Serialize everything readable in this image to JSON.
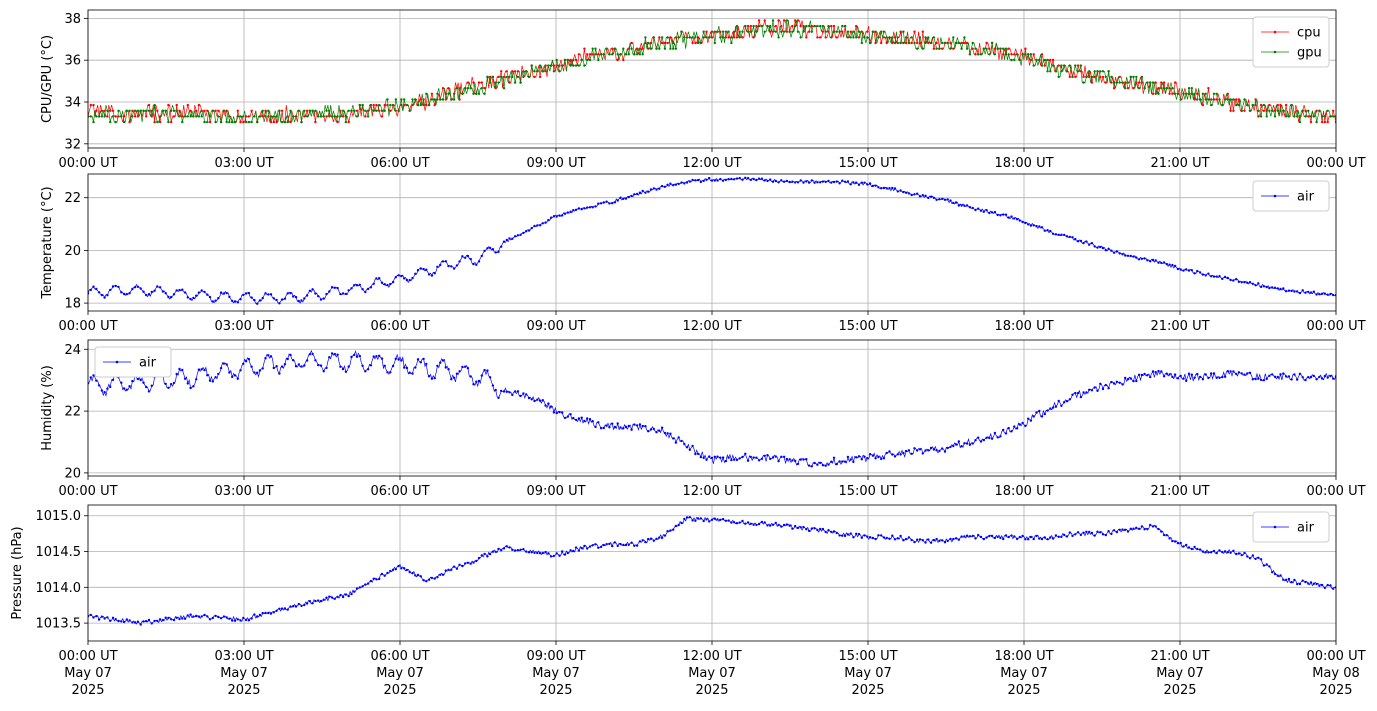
{
  "x_axis": {
    "ticks": [
      "00:00 UT",
      "03:00 UT",
      "06:00 UT",
      "09:00 UT",
      "12:00 UT",
      "15:00 UT",
      "18:00 UT",
      "21:00 UT",
      "00:00 UT"
    ],
    "tick_hours": [
      0,
      3,
      6,
      9,
      12,
      15,
      18,
      21,
      24
    ],
    "date_lines": [
      "May 07",
      "May 07",
      "May 07",
      "May 07",
      "May 07",
      "May 07",
      "May 07",
      "May 07",
      "May 08"
    ],
    "year_lines": [
      "2025",
      "2025",
      "2025",
      "2025",
      "2025",
      "2025",
      "2025",
      "2025",
      "2025"
    ],
    "xlim_hours": [
      0,
      24
    ]
  },
  "colors": {
    "cpu": "#ff0000",
    "gpu": "#008000",
    "air": "#0000ff",
    "grid": "#b0b0b0"
  },
  "chart_data": [
    {
      "type": "line",
      "ylabel": "CPU/GPU (°C)",
      "ylim": [
        31.8,
        38.4
      ],
      "yticks": [
        32,
        34,
        36,
        38
      ],
      "legend_placement": "top-right",
      "grid": true,
      "series": [
        {
          "name": "cpu",
          "x_hours": [
            0,
            1,
            2,
            3,
            4,
            5,
            6,
            6.5,
            7,
            7.5,
            8,
            8.5,
            9,
            9.5,
            10,
            10.5,
            11,
            11.5,
            12,
            12.5,
            13,
            13.5,
            14,
            14.5,
            15,
            15.5,
            16,
            16.5,
            17,
            17.5,
            18,
            18.5,
            19,
            19.5,
            20,
            20.5,
            21,
            21.5,
            22,
            22.5,
            23,
            23.5,
            24
          ],
          "values": [
            33.4,
            33.3,
            33.4,
            33.2,
            33.3,
            33.3,
            33.6,
            33.9,
            34.4,
            34.7,
            35.0,
            35.3,
            35.6,
            36.0,
            36.2,
            36.5,
            36.8,
            37.0,
            37.1,
            37.3,
            37.4,
            37.5,
            37.4,
            37.3,
            37.1,
            37.0,
            36.9,
            36.7,
            36.5,
            36.3,
            36.1,
            35.7,
            35.3,
            35.0,
            34.8,
            34.6,
            34.4,
            34.2,
            33.9,
            33.6,
            33.5,
            33.3,
            33.2
          ]
        },
        {
          "name": "gpu",
          "x_hours": [
            0,
            1,
            2,
            3,
            4,
            5,
            6,
            6.5,
            7,
            7.5,
            8,
            8.5,
            9,
            9.5,
            10,
            10.5,
            11,
            11.5,
            12,
            12.5,
            13,
            13.5,
            14,
            14.5,
            15,
            15.5,
            16,
            16.5,
            17,
            17.5,
            18,
            18.5,
            19,
            19.5,
            20,
            20.5,
            21,
            21.5,
            22,
            22.5,
            23,
            23.5,
            24
          ],
          "values": [
            33.3,
            33.3,
            33.3,
            33.2,
            33.3,
            33.4,
            33.7,
            34.0,
            34.3,
            34.6,
            34.9,
            35.3,
            35.6,
            35.9,
            36.2,
            36.4,
            36.7,
            36.9,
            37.1,
            37.2,
            37.3,
            37.4,
            37.3,
            37.2,
            37.1,
            37.0,
            36.8,
            36.7,
            36.5,
            36.3,
            36.0,
            35.6,
            35.3,
            35.0,
            34.8,
            34.6,
            34.3,
            34.1,
            33.9,
            33.6,
            33.4,
            33.3,
            33.2
          ]
        }
      ]
    },
    {
      "type": "line",
      "ylabel": "Temperature (°C)",
      "ylim": [
        17.7,
        22.9
      ],
      "yticks": [
        18,
        20,
        22
      ],
      "legend_placement": "top-right",
      "grid": true,
      "series": [
        {
          "name": "air",
          "x_hours": [
            0,
            1,
            2,
            3,
            4,
            5,
            6,
            6.5,
            7,
            7.5,
            8,
            8.5,
            9,
            9.5,
            10,
            10.5,
            11,
            11.5,
            12,
            12.5,
            13,
            13.5,
            14,
            14.5,
            15,
            15.5,
            16,
            16.5,
            17,
            17.5,
            18,
            18.5,
            19,
            19.5,
            20,
            20.5,
            21,
            21.5,
            22,
            22.5,
            23,
            23.5,
            24
          ],
          "values": [
            18.4,
            18.5,
            18.3,
            18.2,
            18.2,
            18.5,
            18.9,
            19.2,
            19.5,
            19.7,
            20.3,
            20.8,
            21.3,
            21.6,
            21.8,
            22.1,
            22.4,
            22.6,
            22.7,
            22.7,
            22.7,
            22.6,
            22.6,
            22.6,
            22.5,
            22.3,
            22.1,
            21.9,
            21.6,
            21.4,
            21.1,
            20.7,
            20.4,
            20.1,
            19.8,
            19.6,
            19.3,
            19.1,
            18.9,
            18.7,
            18.5,
            18.4,
            18.3
          ]
        }
      ]
    },
    {
      "type": "line",
      "ylabel": "Humidity (%)",
      "ylim": [
        19.9,
        24.3
      ],
      "yticks": [
        20,
        22,
        24
      ],
      "legend_placement": "top-left",
      "grid": true,
      "series": [
        {
          "name": "air",
          "x_hours": [
            0,
            1,
            2,
            3,
            4,
            5,
            6,
            6.5,
            7,
            7.5,
            8,
            8.5,
            9,
            9.5,
            10,
            10.5,
            11,
            11.5,
            12,
            12.5,
            13,
            13.5,
            14,
            14.5,
            15,
            15.5,
            16,
            16.5,
            17,
            17.5,
            18,
            18.5,
            19,
            19.5,
            20,
            20.5,
            21,
            21.5,
            22,
            22.5,
            23,
            23.5,
            24
          ],
          "values": [
            22.8,
            22.9,
            23.1,
            23.4,
            23.6,
            23.6,
            23.5,
            23.4,
            23.3,
            23.1,
            22.7,
            22.5,
            22.0,
            21.7,
            21.5,
            21.5,
            21.4,
            20.9,
            20.4,
            20.5,
            20.5,
            20.4,
            20.3,
            20.4,
            20.5,
            20.6,
            20.7,
            20.8,
            21.0,
            21.2,
            21.6,
            22.1,
            22.5,
            22.8,
            23.0,
            23.2,
            23.1,
            23.1,
            23.2,
            23.1,
            23.1,
            23.1,
            23.1
          ]
        }
      ]
    },
    {
      "type": "line",
      "ylabel": "Pressure (hPa)",
      "ylim": [
        1013.25,
        1015.15
      ],
      "yticks": [
        1013.5,
        1014.0,
        1014.5,
        1015.0
      ],
      "legend_placement": "top-right",
      "grid": true,
      "series": [
        {
          "name": "air",
          "x_hours": [
            0,
            1,
            2,
            3,
            4,
            5,
            6,
            6.5,
            7,
            7.5,
            8,
            8.5,
            9,
            9.5,
            10,
            10.5,
            11,
            11.5,
            12,
            12.5,
            13,
            13.5,
            14,
            14.5,
            15,
            15.5,
            16,
            16.5,
            17,
            17.5,
            18,
            18.5,
            19,
            19.5,
            20,
            20.5,
            21,
            21.5,
            22,
            22.5,
            23,
            23.5,
            24
          ],
          "values": [
            1013.6,
            1013.5,
            1013.6,
            1013.55,
            1013.75,
            1013.9,
            1014.3,
            1014.1,
            1014.25,
            1014.4,
            1014.55,
            1014.5,
            1014.45,
            1014.55,
            1014.6,
            1014.6,
            1014.7,
            1014.95,
            1014.95,
            1014.9,
            1014.9,
            1014.85,
            1014.8,
            1014.75,
            1014.7,
            1014.7,
            1014.65,
            1014.65,
            1014.7,
            1014.7,
            1014.7,
            1014.7,
            1014.75,
            1014.75,
            1014.8,
            1014.85,
            1014.6,
            1014.5,
            1014.5,
            1014.4,
            1014.1,
            1014.05,
            1014.0
          ]
        }
      ]
    }
  ]
}
